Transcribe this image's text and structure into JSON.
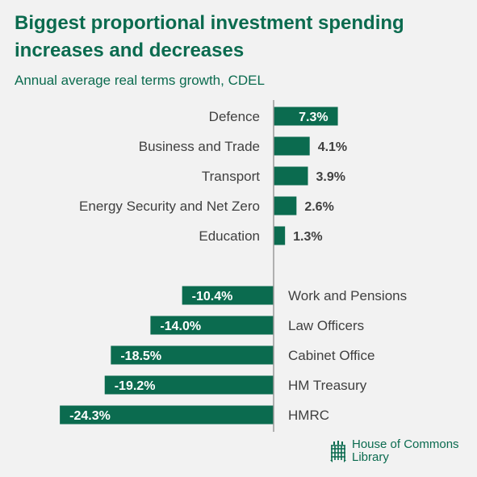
{
  "chart_data": {
    "type": "bar",
    "orientation": "horizontal",
    "title": "Biggest proportional investment spending increases and decreases",
    "subtitle": "Annual average real terms growth, CDEL",
    "categories": [
      "Defence",
      "Business and Trade",
      "Transport",
      "Energy Security and Net Zero",
      "Education",
      "Work and Pensions",
      "Law Officers",
      "Cabinet Office",
      "HM Treasury",
      "HMRC"
    ],
    "values": [
      7.3,
      4.1,
      3.9,
      2.6,
      1.3,
      -10.4,
      -14.0,
      -18.5,
      -19.2,
      -24.3
    ],
    "data_labels": [
      "7.3%",
      "4.1%",
      "3.9%",
      "2.6%",
      "1.3%",
      "-10.4%",
      "-14.0%",
      "-18.5%",
      "-19.2%",
      "-24.3%"
    ],
    "group_gap_after_index": 4,
    "grid": false,
    "legend": "none",
    "bar_color": "#0b6b4f",
    "axis_color": "#999999"
  },
  "branding": {
    "line1": "House of Commons",
    "line2": "Library",
    "icon": "portcullis-icon",
    "color": "#0b6b4f"
  }
}
